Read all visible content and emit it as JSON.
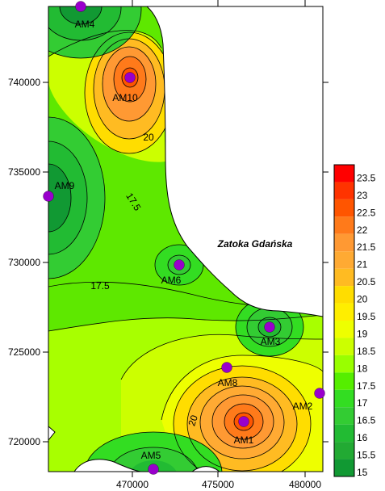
{
  "map": {
    "sea_label": "Zatoka Gdańska",
    "x_ticks": [
      "470000",
      "475000",
      "480000"
    ],
    "y_ticks": [
      "740000",
      "735000",
      "730000",
      "725000",
      "720000"
    ]
  },
  "stations": [
    {
      "id": "AM1",
      "label": "AM1"
    },
    {
      "id": "AM2",
      "label": "AM2"
    },
    {
      "id": "AM3",
      "label": "AM3"
    },
    {
      "id": "AM4",
      "label": "AM4"
    },
    {
      "id": "AM5",
      "label": "AM5"
    },
    {
      "id": "AM6",
      "label": "AM6"
    },
    {
      "id": "AM8",
      "label": "AM8"
    },
    {
      "id": "AM9",
      "label": "AM9"
    },
    {
      "id": "AM10",
      "label": "AM10"
    }
  ],
  "contour_labels": [
    "20",
    "17.5",
    "17.5",
    "20"
  ],
  "legend": {
    "values": [
      "23.5",
      "23",
      "22.5",
      "22",
      "21.5",
      "21",
      "20.5",
      "20",
      "19.5",
      "19",
      "18.5",
      "18",
      "17.5",
      "17",
      "16.5",
      "16",
      "15.5",
      "15"
    ],
    "colors": [
      "#ff0000",
      "#ff3300",
      "#ff5500",
      "#ff7a1a",
      "#ff9933",
      "#ffaa33",
      "#ffbb22",
      "#ffdd00",
      "#ffee00",
      "#eeff00",
      "#ccff00",
      "#99ff00",
      "#55ee00",
      "#33dd22",
      "#33cc33",
      "#22bb33",
      "#22aa33",
      "#119933"
    ]
  },
  "colors": {
    "sea": "#ffffff",
    "coast": "#000000",
    "station_marker": "#9900cc"
  }
}
